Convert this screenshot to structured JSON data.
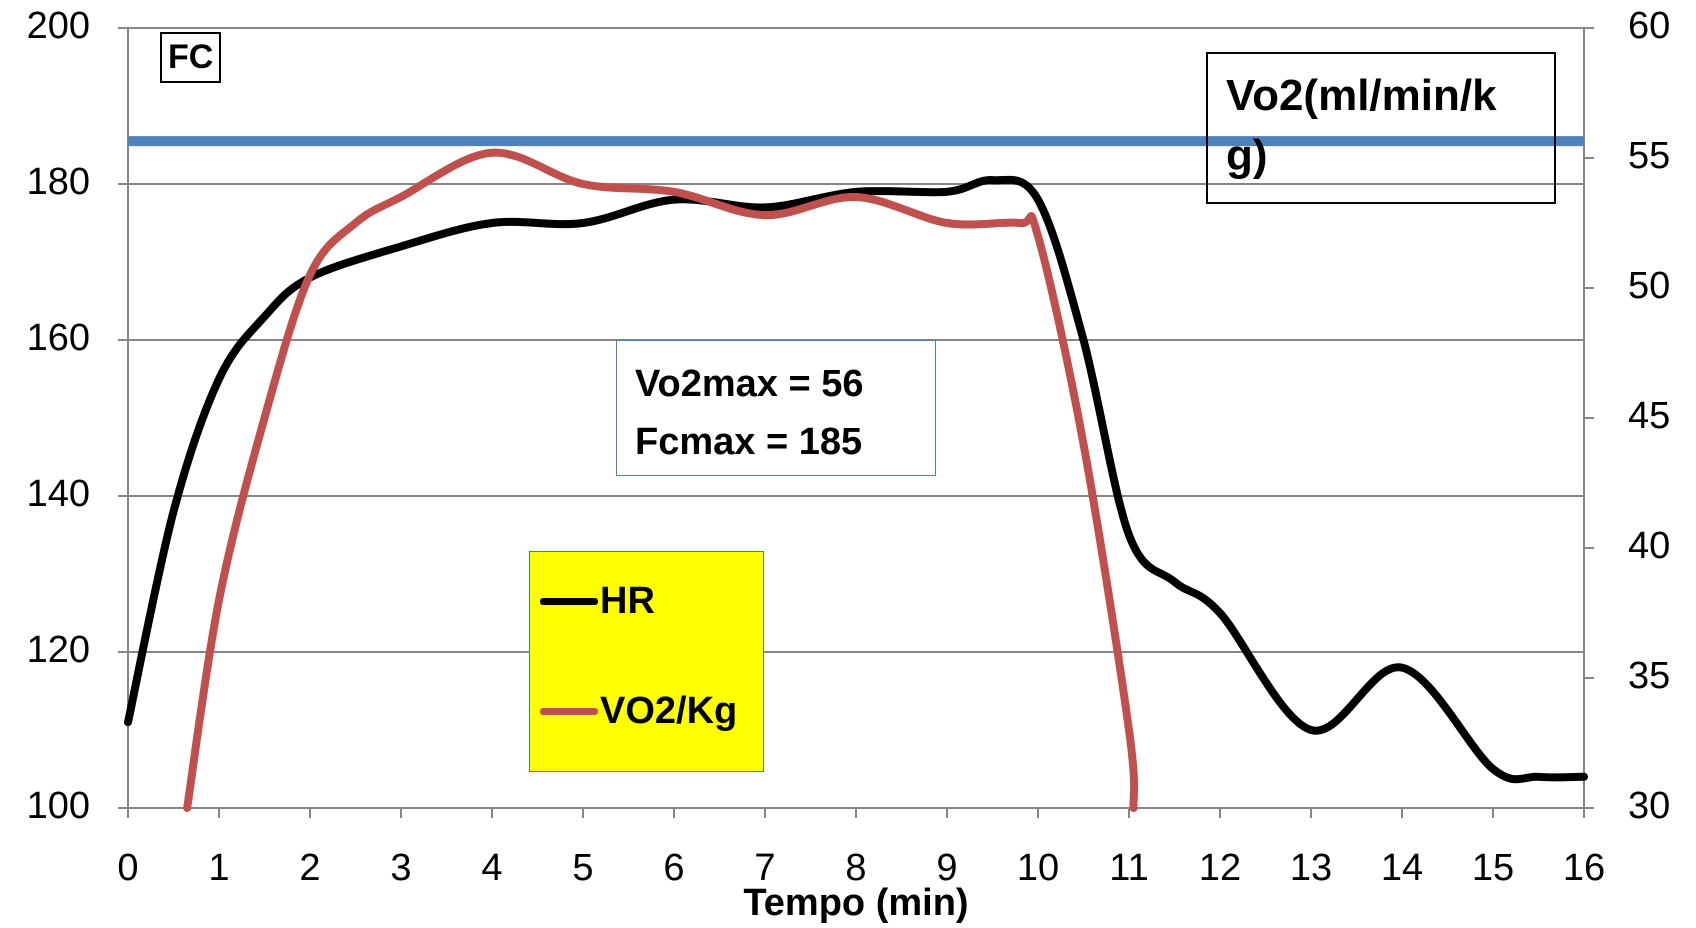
{
  "chart_data": {
    "type": "line",
    "x_label": "Tempo (min)",
    "y_label": "FC",
    "y2_label": "Vo2(ml/min/kg)",
    "annotations": [
      "Vo2max = 56",
      "Fcmax = 185"
    ],
    "xlim": [
      0,
      16
    ],
    "xticks": [
      0,
      1,
      2,
      3,
      4,
      5,
      6,
      7,
      8,
      9,
      10,
      11,
      12,
      13,
      14,
      15,
      16
    ],
    "ylim": [
      100,
      200
    ],
    "yticks": [
      100,
      120,
      140,
      160,
      180,
      200
    ],
    "y2lim": [
      30,
      60
    ],
    "y2ticks": [
      30,
      35,
      40,
      45,
      50,
      55,
      60
    ],
    "grid": true,
    "reference_line": {
      "value": 185.5,
      "color": "#4f81bd"
    },
    "series": [
      {
        "name": "HR",
        "color": "#000000",
        "x": [
          0,
          0.5,
          1,
          1.5,
          2,
          3,
          4,
          5,
          6,
          7,
          8,
          9,
          9.5,
          10,
          10.5,
          11,
          11.5,
          12,
          13,
          14,
          15,
          15.5,
          16
        ],
        "values": [
          111,
          138,
          155,
          163,
          168,
          172,
          175,
          175,
          178,
          177,
          179,
          179,
          180.5,
          178,
          160,
          135,
          129,
          125,
          110,
          118,
          105,
          104,
          104
        ]
      },
      {
        "name": "VO2/Kg",
        "color": "#c0504d",
        "axis": "y2",
        "x": [
          0.65,
          1,
          1.5,
          2,
          2.5,
          3,
          4,
          5,
          6,
          7,
          8,
          9,
          9.8,
          10,
          10.5,
          11,
          11.05
        ],
        "values": [
          30,
          38,
          45,
          50.5,
          52.5,
          53.5,
          55.2,
          54,
          53.7,
          52.8,
          53.5,
          52.5,
          52.5,
          52,
          44,
          33,
          30
        ]
      }
    ]
  }
}
